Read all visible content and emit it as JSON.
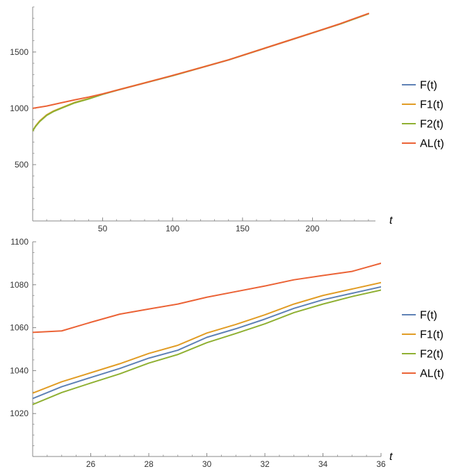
{
  "chart_data": [
    {
      "type": "line",
      "title": "",
      "xlabel": "t",
      "ylabel": "",
      "xlim": [
        0,
        245
      ],
      "ylim": [
        0,
        1900
      ],
      "x_ticks": [
        50,
        100,
        150,
        200
      ],
      "y_ticks": [
        500,
        1000,
        1500
      ],
      "x_minor_step": 10,
      "y_minor_step": 100,
      "grid": false,
      "legend_position": "right",
      "series": [
        {
          "name": "F(t)",
          "color": "#5E81B5",
          "x": [
            0,
            2,
            5,
            10,
            15,
            20,
            30,
            40,
            50,
            60,
            80,
            100,
            120,
            140,
            160,
            180,
            200,
            220,
            240
          ],
          "y": [
            800,
            840,
            885,
            940,
            975,
            1000,
            1050,
            1085,
            1125,
            1160,
            1225,
            1290,
            1360,
            1430,
            1510,
            1590,
            1670,
            1750,
            1840
          ]
        },
        {
          "name": "F1(t)",
          "color": "#E19C24",
          "x": [
            0,
            2,
            5,
            10,
            15,
            20,
            30,
            40,
            50,
            60,
            80,
            100,
            120,
            140,
            160,
            180,
            200,
            220,
            240
          ],
          "y": [
            800,
            842,
            888,
            942,
            977,
            1002,
            1052,
            1087,
            1126,
            1161,
            1226,
            1291,
            1361,
            1431,
            1511,
            1591,
            1671,
            1751,
            1841
          ]
        },
        {
          "name": "F2(t)",
          "color": "#8FB032",
          "x": [
            0,
            2,
            5,
            10,
            15,
            20,
            30,
            40,
            50,
            60,
            80,
            100,
            120,
            140,
            160,
            180,
            200,
            220,
            240
          ],
          "y": [
            800,
            838,
            882,
            937,
            972,
            998,
            1048,
            1083,
            1124,
            1159,
            1224,
            1289,
            1359,
            1429,
            1509,
            1589,
            1669,
            1749,
            1839
          ]
        },
        {
          "name": "AL(t)",
          "color": "#EB6235",
          "x": [
            0,
            10,
            20,
            30,
            40,
            50,
            60,
            80,
            100,
            120,
            140,
            160,
            180,
            200,
            220,
            240
          ],
          "y": [
            1000,
            1020,
            1048,
            1075,
            1100,
            1128,
            1160,
            1225,
            1292,
            1360,
            1430,
            1510,
            1590,
            1670,
            1752,
            1842
          ]
        }
      ]
    },
    {
      "type": "line",
      "title": "",
      "xlabel": "t",
      "ylabel": "",
      "xlim": [
        24,
        36
      ],
      "ylim": [
        1000,
        1100
      ],
      "x_ticks": [
        26,
        28,
        30,
        32,
        34,
        36
      ],
      "y_ticks": [
        1020,
        1040,
        1060,
        1080,
        1100
      ],
      "x_minor_step": 0.5,
      "y_minor_step": 5,
      "grid": false,
      "legend_position": "right",
      "series": [
        {
          "name": "F(t)",
          "color": "#5E81B5",
          "x": [
            24,
            25,
            26,
            27,
            28,
            29,
            30,
            31,
            32,
            33,
            34,
            35,
            36
          ],
          "y": [
            1027,
            1032.5,
            1036.8,
            1041,
            1045.8,
            1049.5,
            1055.5,
            1059.5,
            1064,
            1069,
            1073,
            1076,
            1079
          ]
        },
        {
          "name": "F1(t)",
          "color": "#E19C24",
          "x": [
            24,
            25,
            26,
            27,
            28,
            29,
            30,
            31,
            32,
            33,
            34,
            35,
            36
          ],
          "y": [
            1029.5,
            1034.8,
            1039,
            1043.2,
            1048,
            1051.8,
            1057.5,
            1061.5,
            1066,
            1071,
            1075,
            1078,
            1081
          ]
        },
        {
          "name": "F2(t)",
          "color": "#8FB032",
          "x": [
            24,
            25,
            26,
            27,
            28,
            29,
            30,
            31,
            32,
            33,
            34,
            35,
            36
          ],
          "y": [
            1024.2,
            1029.8,
            1034.2,
            1038.5,
            1043.5,
            1047.5,
            1053,
            1057.3,
            1061.8,
            1067,
            1071,
            1074.5,
            1077.5
          ]
        },
        {
          "name": "AL(t)",
          "color": "#EB6235",
          "x": [
            24,
            25,
            26,
            27,
            28,
            29,
            30,
            31,
            32,
            33,
            34,
            35,
            36
          ],
          "y": [
            1057.8,
            1058.5,
            1062.5,
            1066.3,
            1068.7,
            1071,
            1074.2,
            1076.8,
            1079.4,
            1082.3,
            1084.3,
            1086.2,
            1090
          ]
        }
      ]
    }
  ]
}
